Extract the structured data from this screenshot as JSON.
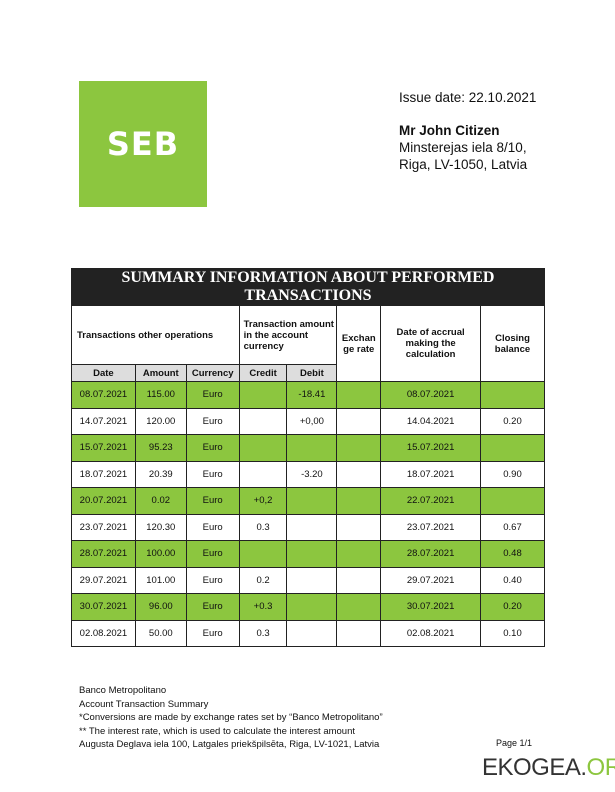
{
  "logo": "SEB",
  "header": {
    "issue_date": "Issue date: 22.10.2021",
    "name": "Mr John Citizen",
    "address1": "Minsterejas iela 8/10,",
    "address2": "Riga, LV-1050, Latvia"
  },
  "table": {
    "title": "SUMMARY INFORMATION ABOUT PERFORMED TRANSACTIONS",
    "group1": "Transactions other operations",
    "group2": "Transaction amount in the account currency",
    "exchange": "Exchan ge rate",
    "accrual": "Date of accrual making the calculation",
    "closing": "Closing balance",
    "sub": [
      "Date",
      "Amount",
      "Currency",
      "Credit",
      "Debit"
    ],
    "rows": [
      [
        "08.07.2021",
        "115.00",
        "Euro",
        "",
        "-18.41",
        "",
        "08.07.2021",
        ""
      ],
      [
        "14.07.2021",
        "120.00",
        "Euro",
        "",
        "+0,00",
        "",
        "14.04.2021",
        "0.20"
      ],
      [
        "15.07.2021",
        "95.23",
        "Euro",
        "",
        "",
        "",
        "15.07.2021",
        ""
      ],
      [
        "18.07.2021",
        "20.39",
        "Euro",
        "",
        "-3.20",
        "",
        "18.07.2021",
        "0.90"
      ],
      [
        "20.07.2021",
        "0.02",
        "Euro",
        "+0,2",
        "",
        "",
        "22.07.2021",
        ""
      ],
      [
        "23.07.2021",
        "120.30",
        "Euro",
        "0.3",
        "",
        "",
        "23.07.2021",
        "0.67"
      ],
      [
        "28.07.2021",
        "100.00",
        "Euro",
        "",
        "",
        "",
        "28.07.2021",
        "0.48"
      ],
      [
        "29.07.2021",
        "101.00",
        "Euro",
        "0.2",
        "",
        "",
        "29.07.2021",
        "0.40"
      ],
      [
        "30.07.2021",
        "96.00",
        "Euro",
        "+0.3",
        "",
        "",
        "30.07.2021",
        "0.20"
      ],
      [
        "02.08.2021",
        "50.00",
        "Euro",
        "0.3",
        "",
        "",
        "02.08.2021",
        "0.10"
      ]
    ]
  },
  "footer": [
    "Banco Metropolitano",
    "Account Transaction Summary",
    "*Conversions are made by exchange rates set by “Banco Metropolitano”",
    "** The interest rate, which is used to calculate the interest amount",
    "Augusta Deglava iela 100, Latgales priekšpilsēta, Riga, LV-1021, Latvia"
  ],
  "page": "Page 1/1",
  "watermark": {
    "a": "EKOGEA.",
    "b": "ORG"
  },
  "colors": {
    "green": "#8cc63f",
    "dark": "#222222",
    "subheader": "#dddddd"
  }
}
